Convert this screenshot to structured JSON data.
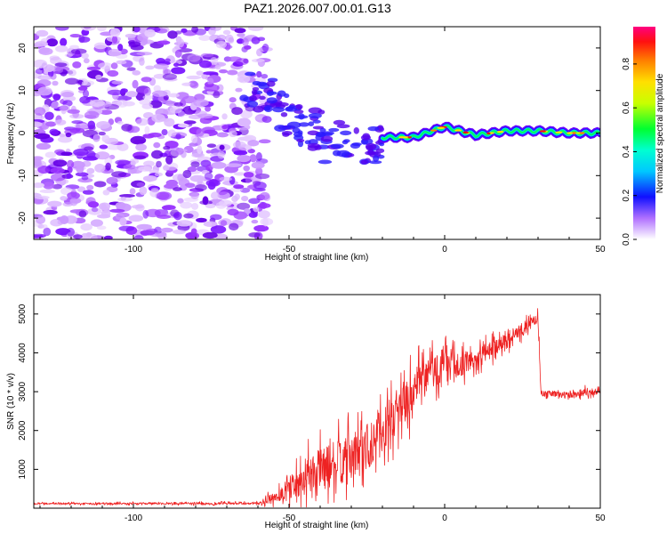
{
  "title": "PAZ1.2026.007.00.01.G13",
  "chart_data": [
    {
      "type": "heatmap",
      "name": "spectrogram",
      "xlabel": "Height of straight line (km)",
      "ylabel": "Frequency (Hz)",
      "xlim": [
        -132,
        50
      ],
      "ylim": [
        -25,
        25
      ],
      "xticks": [
        -100,
        -50,
        0,
        50
      ],
      "yticks": [
        -20,
        -10,
        0,
        10,
        20
      ],
      "colorbar": {
        "label": "Normalized spectral amplitude",
        "range": [
          0.0,
          0.97
        ],
        "ticks": [
          0.0,
          0.2,
          0.4,
          0.6,
          0.8
        ],
        "tick_labels": [
          "0.0",
          "0.2",
          "0.4",
          "0.6",
          "0.8"
        ]
      },
      "ridge": {
        "description": "dominant frequency track",
        "points": [
          [
            -65,
            10.5
          ],
          [
            -55,
            8.5
          ],
          [
            -48,
            5
          ],
          [
            -40,
            2
          ],
          [
            -30,
            0
          ],
          [
            -20,
            -1
          ],
          [
            -10,
            -1
          ],
          [
            0,
            1.5
          ],
          [
            10,
            -0.5
          ],
          [
            20,
            0.5
          ],
          [
            30,
            0.5
          ],
          [
            40,
            0
          ],
          [
            50,
            0
          ]
        ]
      }
    },
    {
      "type": "line",
      "name": "snr",
      "xlabel": "Height of straight line (km)",
      "ylabel": "SNR (10 * v/v)",
      "xlim": [
        -132,
        50
      ],
      "ylim": [
        0,
        5500
      ],
      "xticks": [
        -100,
        -50,
        0,
        50
      ],
      "yticks": [
        1000,
        2000,
        3000,
        4000,
        5000
      ],
      "color": "#ee2222",
      "envelope": {
        "x": [
          -132,
          -60,
          -55,
          -50,
          -45,
          -40,
          -30,
          -25,
          -20,
          -15,
          -10,
          -5,
          0,
          5,
          10,
          15,
          20,
          25,
          30,
          31,
          35,
          40,
          45,
          50
        ],
        "mean": [
          120,
          120,
          250,
          500,
          800,
          1000,
          1300,
          1600,
          2000,
          2500,
          3000,
          3500,
          3600,
          3700,
          3850,
          4100,
          4350,
          4600,
          4900,
          2950,
          2950,
          2900,
          3000,
          3000
        ],
        "spread": [
          40,
          60,
          300,
          600,
          900,
          1100,
          1200,
          1300,
          1200,
          1100,
          1100,
          900,
          1000,
          600,
          500,
          450,
          400,
          350,
          300,
          150,
          150,
          180,
          200,
          150
        ]
      }
    }
  ],
  "colors": {
    "accent": "#ee2222",
    "frame": "#000000"
  }
}
